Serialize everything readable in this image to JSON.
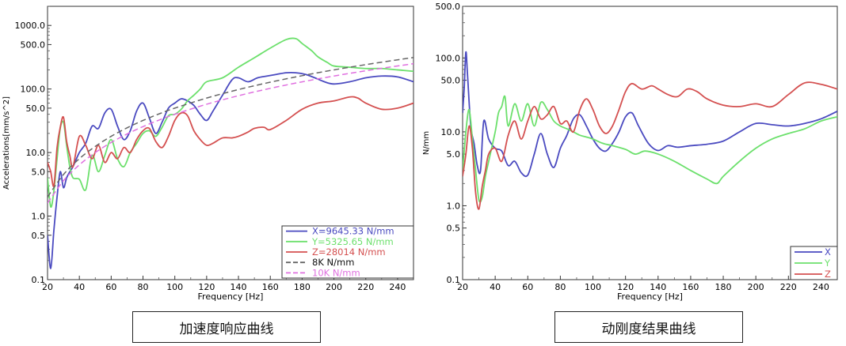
{
  "captions": {
    "left": "加速度响应曲线",
    "right": "动刚度结果曲线"
  },
  "colors": {
    "X": "#4a4ac0",
    "Y": "#6ce06c",
    "Z": "#d45050",
    "8K": "#666666",
    "10K": "#e070e0"
  },
  "chart_data": [
    {
      "type": "line",
      "title": "",
      "xlabel": "Frequency [Hz]",
      "ylabel": "Accelerations[mm/s^2]",
      "yscale": "log",
      "xlim": [
        20,
        250
      ],
      "ylim": [
        0.1,
        2000
      ],
      "xticks": [
        "20",
        "40",
        "60",
        "80",
        "100",
        "120",
        "140",
        "160",
        "180",
        "200",
        "220",
        "240"
      ],
      "yticks": [
        {
          "v": 0.1,
          "label": "0.1"
        },
        {
          "v": 0.5,
          "label": "0.5"
        },
        {
          "v": 1,
          "label": "1.0"
        },
        {
          "v": 5,
          "label": "5.0"
        },
        {
          "v": 10,
          "label": "10.0"
        },
        {
          "v": 50,
          "label": "50.0"
        },
        {
          "v": 100,
          "label": "100.0"
        },
        {
          "v": 500,
          "label": "500.0"
        },
        {
          "v": 1000,
          "label": "1000.0"
        }
      ],
      "legend_position": "bottom-right",
      "series": [
        {
          "name": "X=9645.33  N/mm",
          "key": "X",
          "dash": false,
          "x": [
            20,
            22,
            24,
            26,
            28,
            30,
            32,
            34,
            36,
            40,
            44,
            48,
            52,
            56,
            60,
            64,
            68,
            72,
            76,
            80,
            84,
            88,
            92,
            96,
            100,
            104,
            108,
            112,
            116,
            120,
            124,
            130,
            136,
            140,
            146,
            152,
            158,
            164,
            170,
            176,
            182,
            188,
            194,
            200,
            210,
            220,
            230,
            240,
            250
          ],
          "y": [
            0.5,
            0.15,
            0.6,
            2,
            5,
            2.8,
            4,
            5,
            6,
            10,
            14,
            26,
            24,
            42,
            48,
            26,
            16,
            22,
            45,
            60,
            35,
            20,
            30,
            50,
            60,
            70,
            65,
            55,
            40,
            32,
            45,
            80,
            140,
            150,
            130,
            150,
            160,
            170,
            180,
            180,
            170,
            150,
            130,
            120,
            130,
            150,
            160,
            155,
            130
          ]
        },
        {
          "name": "Y=5325.65  N/mm",
          "key": "Y",
          "dash": false,
          "x": [
            20,
            22,
            24,
            26,
            28,
            30,
            32,
            34,
            36,
            40,
            44,
            48,
            52,
            56,
            60,
            64,
            68,
            72,
            76,
            80,
            84,
            88,
            92,
            96,
            100,
            104,
            108,
            112,
            116,
            120,
            130,
            140,
            150,
            160,
            170,
            176,
            180,
            186,
            190,
            196,
            200,
            210,
            220,
            230,
            240,
            250
          ],
          "y": [
            4,
            1.4,
            2.5,
            8,
            24,
            30,
            13,
            6,
            4,
            3.8,
            2.6,
            9,
            5,
            9,
            16,
            8,
            6,
            10,
            14,
            20,
            22,
            18,
            25,
            38,
            40,
            48,
            65,
            80,
            100,
            130,
            150,
            220,
            310,
            440,
            600,
            620,
            520,
            400,
            320,
            260,
            230,
            220,
            210,
            210,
            200,
            190
          ]
        },
        {
          "name": "Z=28014  N/mm",
          "key": "Z",
          "dash": false,
          "x": [
            20,
            22,
            24,
            26,
            28,
            30,
            32,
            34,
            36,
            40,
            44,
            48,
            52,
            56,
            60,
            64,
            68,
            72,
            76,
            80,
            84,
            88,
            92,
            96,
            100,
            104,
            108,
            112,
            116,
            120,
            124,
            130,
            136,
            140,
            146,
            150,
            156,
            160,
            170,
            180,
            190,
            200,
            210,
            215,
            220,
            230,
            240,
            250
          ],
          "y": [
            7,
            5,
            3,
            12,
            25,
            36,
            15,
            9,
            6,
            18,
            13,
            8,
            13,
            7,
            10,
            8,
            12,
            10,
            16,
            22,
            24,
            15,
            12,
            18,
            32,
            42,
            38,
            22,
            16,
            13,
            14,
            17,
            17,
            18,
            21,
            24,
            25,
            23,
            32,
            48,
            60,
            65,
            75,
            72,
            60,
            48,
            50,
            60
          ]
        },
        {
          "name": "8K N/mm",
          "key": "8K",
          "dash": true,
          "x": [
            20,
            30,
            40,
            50,
            60,
            70,
            80,
            90,
            100,
            120,
            140,
            160,
            180,
            200,
            220,
            240,
            250
          ],
          "y": [
            2,
            4.5,
            8,
            12.5,
            18,
            24.5,
            32,
            40.5,
            50,
            72,
            98,
            128,
            162,
            200,
            242,
            288,
            313
          ]
        },
        {
          "name": "10K N/mm",
          "key": "10K",
          "dash": true,
          "x": [
            20,
            30,
            40,
            50,
            60,
            70,
            80,
            90,
            100,
            120,
            140,
            160,
            180,
            200,
            220,
            240,
            250
          ],
          "y": [
            1.6,
            3.6,
            6.4,
            10,
            14.4,
            19.6,
            25.6,
            32.4,
            40,
            57.6,
            78.4,
            102.4,
            129.6,
            160,
            193.6,
            230.4,
            250
          ]
        }
      ]
    },
    {
      "type": "line",
      "title": "",
      "xlabel": "Frequency [Hz]",
      "ylabel": "N/mm",
      "yscale": "log",
      "xlim": [
        20,
        250
      ],
      "ylim": [
        0.1,
        500
      ],
      "xticks": [
        "20",
        "40",
        "60",
        "80",
        "100",
        "120",
        "140",
        "160",
        "180",
        "200",
        "220",
        "240"
      ],
      "yticks": [
        {
          "v": 0.1,
          "label": "0.1"
        },
        {
          "v": 0.5,
          "label": "0.5"
        },
        {
          "v": 1,
          "label": "1.0"
        },
        {
          "v": 5,
          "label": "5.0"
        },
        {
          "v": 10,
          "label": "10.0"
        },
        {
          "v": 50,
          "label": "50.0"
        },
        {
          "v": 100,
          "label": "100.0"
        },
        {
          "v": 500,
          "label": "500.0"
        }
      ],
      "legend_position": "bottom-right",
      "series": [
        {
          "name": "X",
          "key": "X",
          "dash": false,
          "x": [
            20,
            21,
            22,
            23,
            25,
            27,
            29,
            31,
            33,
            36,
            40,
            44,
            48,
            52,
            56,
            60,
            64,
            68,
            72,
            76,
            80,
            84,
            88,
            92,
            96,
            100,
            104,
            108,
            112,
            116,
            120,
            124,
            128,
            134,
            140,
            146,
            152,
            160,
            170,
            180,
            190,
            200,
            210,
            220,
            230,
            240,
            250
          ],
          "y": [
            18,
            40,
            120,
            60,
            12,
            7,
            3.5,
            3,
            14,
            8,
            6,
            5.5,
            3.5,
            4,
            2.8,
            2.6,
            5,
            9.5,
            5,
            3.3,
            6,
            9,
            15,
            17,
            12,
            8,
            6,
            5.5,
            7,
            10,
            16,
            18,
            12,
            7,
            5.6,
            6.5,
            6.2,
            6.5,
            6.8,
            7.5,
            10,
            13,
            12.5,
            12,
            13,
            15,
            19
          ]
        },
        {
          "name": "Y",
          "key": "Y",
          "dash": false,
          "x": [
            20,
            22,
            24,
            26,
            28,
            30,
            32,
            34,
            36,
            40,
            42,
            44,
            46,
            48,
            52,
            56,
            60,
            64,
            68,
            72,
            76,
            80,
            84,
            88,
            92,
            96,
            100,
            106,
            112,
            120,
            126,
            132,
            140,
            150,
            160,
            170,
            176,
            180,
            190,
            200,
            210,
            220,
            230,
            240,
            250
          ],
          "y": [
            3,
            10,
            20,
            8,
            3,
            1.2,
            1.3,
            2.5,
            4,
            10,
            18,
            22,
            30,
            12,
            24,
            14,
            24,
            12,
            25,
            20,
            14,
            12,
            11,
            10,
            9,
            8.5,
            8,
            7,
            6.5,
            5.8,
            5,
            5.5,
            5,
            4,
            3,
            2.3,
            2,
            2.5,
            4,
            6,
            8,
            9.5,
            11,
            14,
            16
          ]
        },
        {
          "name": "Z",
          "key": "Z",
          "dash": false,
          "x": [
            20,
            22,
            24,
            26,
            28,
            30,
            32,
            34,
            36,
            40,
            44,
            48,
            52,
            56,
            60,
            64,
            68,
            72,
            76,
            80,
            84,
            88,
            92,
            96,
            100,
            104,
            108,
            112,
            116,
            120,
            124,
            130,
            136,
            140,
            146,
            152,
            158,
            164,
            170,
            180,
            190,
            200,
            210,
            220,
            230,
            240,
            250
          ],
          "y": [
            2.5,
            5,
            12,
            6,
            1.5,
            0.9,
            1.8,
            3,
            5,
            6,
            4,
            9,
            14,
            8,
            14,
            22,
            15,
            17,
            22,
            13,
            14,
            10,
            20,
            28,
            20,
            12,
            9.5,
            12,
            20,
            35,
            45,
            38,
            42,
            38,
            32,
            30,
            38,
            35,
            28,
            23,
            22,
            24,
            22,
            32,
            46,
            44,
            38
          ]
        }
      ]
    }
  ]
}
